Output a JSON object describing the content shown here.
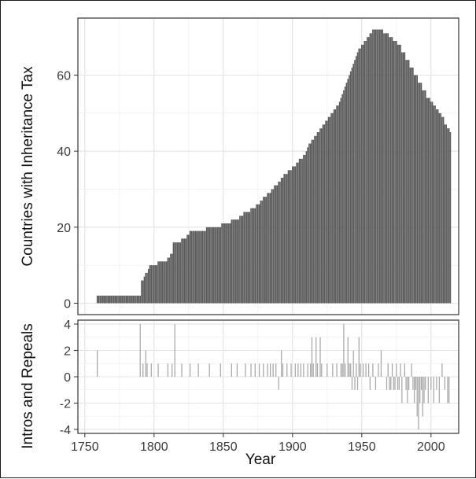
{
  "chart_data": [
    {
      "type": "bar",
      "title": "",
      "xlabel": "",
      "ylabel": "Countries with Inheritance Tax",
      "xlim": [
        1745,
        2020
      ],
      "ylim": [
        -3,
        75
      ],
      "yticks": [
        0,
        20,
        40,
        60
      ],
      "grid": true,
      "bar_color": "#5a5a5a",
      "series": [
        {
          "points": [
            [
              1759,
              2
            ],
            [
              1791,
              6
            ],
            [
              1793,
              7
            ],
            [
              1794,
              8
            ],
            [
              1796,
              9
            ],
            [
              1797,
              10
            ],
            [
              1803,
              11
            ],
            [
              1810,
              12
            ],
            [
              1812,
              13
            ],
            [
              1814,
              16
            ],
            [
              1820,
              17
            ],
            [
              1824,
              18
            ],
            [
              1826,
              19
            ],
            [
              1838,
              20
            ],
            [
              1849,
              21
            ],
            [
              1856,
              22
            ],
            [
              1862,
              23
            ],
            [
              1865,
              24
            ],
            [
              1870,
              25
            ],
            [
              1874,
              26
            ],
            [
              1877,
              27
            ],
            [
              1879,
              28
            ],
            [
              1882,
              29
            ],
            [
              1885,
              30
            ],
            [
              1887,
              31
            ],
            [
              1890,
              32
            ],
            [
              1892,
              33
            ],
            [
              1894,
              34
            ],
            [
              1897,
              35
            ],
            [
              1900,
              36
            ],
            [
              1903,
              37
            ],
            [
              1905,
              38
            ],
            [
              1908,
              39
            ],
            [
              1910,
              40
            ],
            [
              1911,
              41
            ],
            [
              1912,
              42
            ],
            [
              1914,
              43
            ],
            [
              1916,
              44
            ],
            [
              1918,
              45
            ],
            [
              1920,
              46
            ],
            [
              1922,
              47
            ],
            [
              1924,
              48
            ],
            [
              1926,
              49
            ],
            [
              1928,
              50
            ],
            [
              1930,
              51
            ],
            [
              1932,
              52
            ],
            [
              1934,
              53
            ],
            [
              1935,
              54
            ],
            [
              1936,
              55
            ],
            [
              1937,
              56
            ],
            [
              1938,
              57
            ],
            [
              1939,
              58
            ],
            [
              1940,
              59
            ],
            [
              1941,
              60
            ],
            [
              1942,
              61
            ],
            [
              1943,
              62
            ],
            [
              1944,
              63
            ],
            [
              1945,
              64
            ],
            [
              1946,
              65
            ],
            [
              1947,
              66
            ],
            [
              1948,
              67
            ],
            [
              1950,
              68
            ],
            [
              1952,
              69
            ],
            [
              1954,
              70
            ],
            [
              1956,
              71
            ],
            [
              1958,
              72
            ],
            [
              1966,
              71
            ],
            [
              1970,
              70
            ],
            [
              1973,
              69
            ],
            [
              1976,
              68
            ],
            [
              1979,
              66
            ],
            [
              1982,
              64
            ],
            [
              1985,
              62
            ],
            [
              1988,
              60
            ],
            [
              1991,
              58
            ],
            [
              1994,
              56
            ],
            [
              1997,
              54
            ],
            [
              2000,
              53
            ],
            [
              2002,
              52
            ],
            [
              2004,
              51
            ],
            [
              2006,
              50
            ],
            [
              2008,
              49
            ],
            [
              2010,
              47
            ],
            [
              2012,
              46
            ],
            [
              2014,
              45
            ]
          ]
        }
      ]
    },
    {
      "type": "bar",
      "title": "",
      "xlabel": "Year",
      "ylabel": "Intros and Repeals",
      "xlim": [
        1745,
        2020
      ],
      "ylim": [
        -4.3,
        4.3
      ],
      "yticks": [
        -4,
        -2,
        0,
        2,
        4
      ],
      "xticks": [
        1750,
        1800,
        1850,
        1900,
        1950,
        2000
      ],
      "grid": true,
      "bar_color": "#a6a6a6",
      "points": [
        [
          1759,
          2
        ],
        [
          1790,
          4
        ],
        [
          1792,
          1
        ],
        [
          1794,
          2
        ],
        [
          1795,
          1
        ],
        [
          1798,
          1
        ],
        [
          1803,
          1
        ],
        [
          1810,
          1
        ],
        [
          1813,
          1
        ],
        [
          1815,
          4
        ],
        [
          1820,
          1
        ],
        [
          1826,
          1
        ],
        [
          1832,
          1
        ],
        [
          1840,
          1
        ],
        [
          1848,
          1
        ],
        [
          1856,
          1
        ],
        [
          1860,
          1
        ],
        [
          1866,
          1
        ],
        [
          1870,
          1
        ],
        [
          1873,
          1
        ],
        [
          1876,
          1
        ],
        [
          1879,
          1
        ],
        [
          1882,
          1
        ],
        [
          1884,
          1
        ],
        [
          1886,
          1
        ],
        [
          1888,
          1
        ],
        [
          1890,
          -1
        ],
        [
          1892,
          2
        ],
        [
          1893,
          1
        ],
        [
          1896,
          1
        ],
        [
          1899,
          1
        ],
        [
          1902,
          1
        ],
        [
          1904,
          1
        ],
        [
          1906,
          1
        ],
        [
          1908,
          1
        ],
        [
          1911,
          1
        ],
        [
          1913,
          1
        ],
        [
          1914,
          3
        ],
        [
          1915,
          1
        ],
        [
          1917,
          3
        ],
        [
          1918,
          1
        ],
        [
          1920,
          3
        ],
        [
          1921,
          1
        ],
        [
          1925,
          1
        ],
        [
          1929,
          1
        ],
        [
          1932,
          1
        ],
        [
          1935,
          1
        ],
        [
          1936,
          1
        ],
        [
          1937,
          4
        ],
        [
          1938,
          1
        ],
        [
          1940,
          3
        ],
        [
          1941,
          1
        ],
        [
          1942,
          1
        ],
        [
          1943,
          -1
        ],
        [
          1944,
          2
        ],
        [
          1945,
          -1
        ],
        [
          1946,
          1
        ],
        [
          1947,
          -1
        ],
        [
          1948,
          3
        ],
        [
          1949,
          1
        ],
        [
          1951,
          1
        ],
        [
          1953,
          1
        ],
        [
          1955,
          1
        ],
        [
          1956,
          -1
        ],
        [
          1958,
          1
        ],
        [
          1960,
          -1
        ],
        [
          1962,
          1
        ],
        [
          1964,
          2
        ],
        [
          1968,
          -1
        ],
        [
          1969,
          1
        ],
        [
          1970,
          -1
        ],
        [
          1971,
          -1
        ],
        [
          1972,
          1
        ],
        [
          1973,
          -1
        ],
        [
          1974,
          -1
        ],
        [
          1975,
          1
        ],
        [
          1976,
          -1
        ],
        [
          1977,
          -1
        ],
        [
          1978,
          1
        ],
        [
          1979,
          -2
        ],
        [
          1981,
          1
        ],
        [
          1982,
          -1
        ],
        [
          1983,
          -2
        ],
        [
          1984,
          -1
        ],
        [
          1986,
          1
        ],
        [
          1987,
          -1
        ],
        [
          1988,
          -2
        ],
        [
          1989,
          -1
        ],
        [
          1990,
          -3
        ],
        [
          1991,
          -4
        ],
        [
          1992,
          -2
        ],
        [
          1993,
          -1
        ],
        [
          1994,
          -3
        ],
        [
          1995,
          -2
        ],
        [
          1996,
          -1
        ],
        [
          1998,
          -2
        ],
        [
          2000,
          -1
        ],
        [
          2002,
          -2
        ],
        [
          2004,
          -1
        ],
        [
          2006,
          -2
        ],
        [
          2008,
          1
        ],
        [
          2010,
          -1
        ],
        [
          2012,
          -2
        ],
        [
          2013,
          -2
        ]
      ]
    }
  ]
}
